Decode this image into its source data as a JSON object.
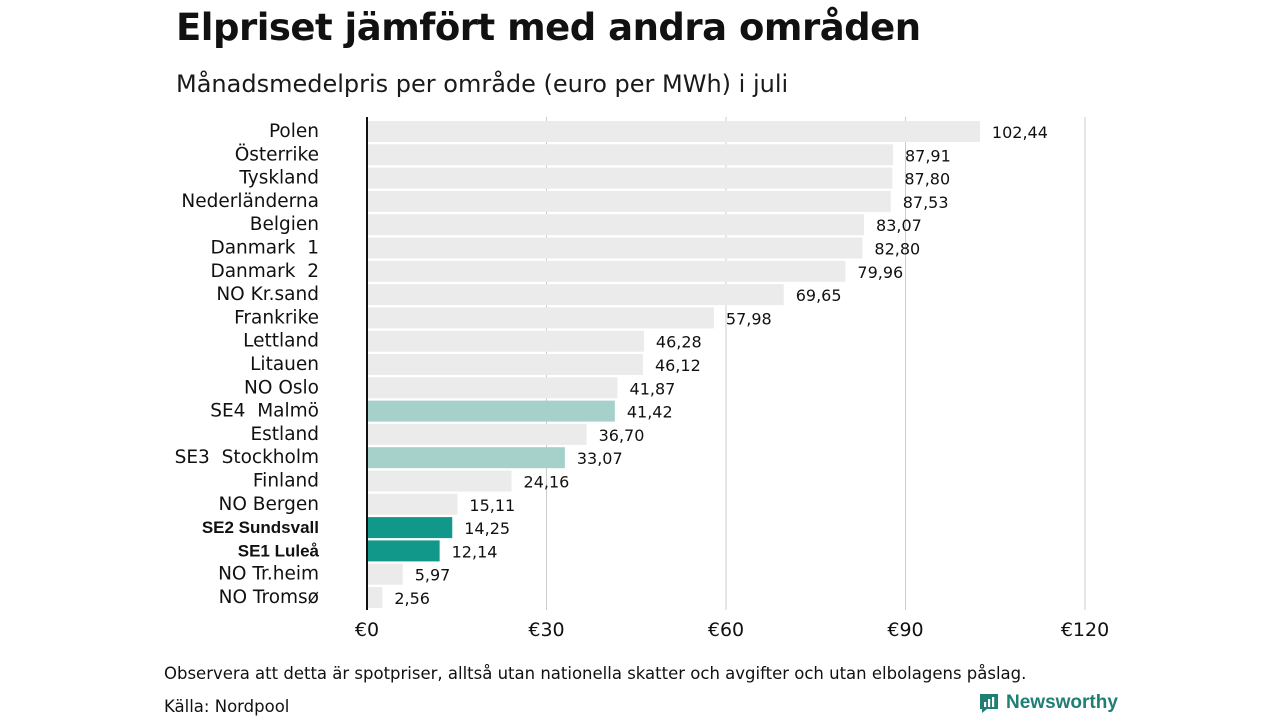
{
  "header": {
    "title": "Elpriset jämfört med andra områden",
    "subtitle": "Månadsmedelpris per område (euro per MWh) i juli"
  },
  "footer": {
    "note": "Observera att detta är spotpriser, alltså utan nationella skatter och avgifter och utan elbolagens påslag.",
    "source": "Källa: Nordpool",
    "brand": "Newsworthy",
    "brand_color": "#1f7f72"
  },
  "colors": {
    "default_bar": "#ebebeb",
    "highlight_light": "#a6d1cb",
    "highlight_dark": "#11988a",
    "axis": "#111111",
    "grid": "#cccccc"
  },
  "chart_data": {
    "type": "bar",
    "orientation": "horizontal",
    "xlim": [
      0,
      120
    ],
    "xticks": [
      0,
      30,
      60,
      90,
      120
    ],
    "xtick_labels": [
      "€0",
      "€30",
      "€60",
      "€90",
      "€120"
    ],
    "grid": true,
    "categories": [
      "Polen",
      "Österrike",
      "Tyskland",
      "Nederländerna",
      "Belgien",
      "Danmark  1",
      "Danmark  2",
      "NO Kr.sand",
      "Frankrike",
      "Lettland",
      "Litauen",
      "NO Oslo",
      "SE4  Malmö",
      "Estland",
      "SE3  Stockholm",
      "Finland",
      "NO Bergen",
      "SE2 Sundsvall",
      "SE1 Luleå",
      "NO Tr.heim",
      "NO Tromsø"
    ],
    "values": [
      102.44,
      87.91,
      87.8,
      87.53,
      83.07,
      82.8,
      79.96,
      69.65,
      57.98,
      46.28,
      46.12,
      41.87,
      41.42,
      36.7,
      33.07,
      24.16,
      15.11,
      14.25,
      12.14,
      5.97,
      2.56
    ],
    "value_labels": [
      "102,44",
      "87,91",
      "87,80",
      "87,53",
      "83,07",
      "82,80",
      "79,96",
      "69,65",
      "57,98",
      "46,28",
      "46,12",
      "41,87",
      "41,42",
      "36,70",
      "33,07",
      "24,16",
      "15,11",
      "14,25",
      "12,14",
      "5,97",
      "2,56"
    ],
    "highlight": [
      "none",
      "none",
      "none",
      "none",
      "none",
      "none",
      "none",
      "none",
      "none",
      "none",
      "none",
      "none",
      "light",
      "none",
      "light",
      "none",
      "none",
      "dark",
      "dark",
      "none",
      "none"
    ]
  }
}
